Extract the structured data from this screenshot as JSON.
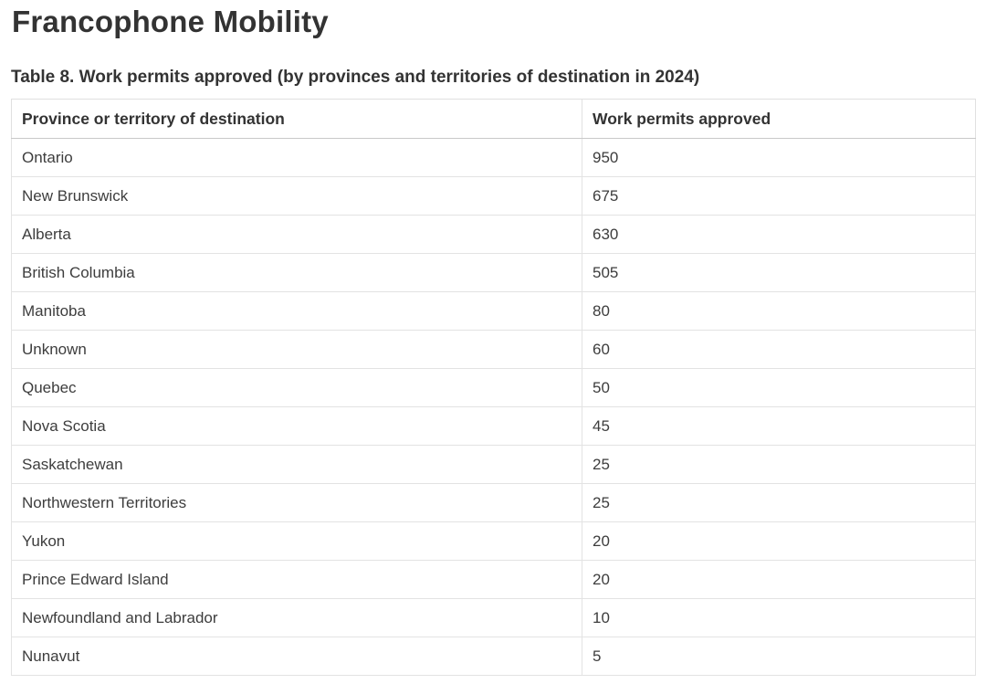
{
  "page": {
    "title": "Francophone Mobility",
    "table_caption": "Table 8. Work permits approved (by provinces and territories of destination in 2024)"
  },
  "colors": {
    "text_dark": "#333333",
    "text_body": "#3d3d3d",
    "border_light": "#e3e3e3",
    "border_header": "#c9c9c9",
    "background": "#ffffff"
  },
  "table": {
    "columns": [
      "Province or territory of destination",
      "Work permits approved"
    ],
    "rows": [
      {
        "province": "Ontario",
        "permits": "950"
      },
      {
        "province": "New Brunswick",
        "permits": "675"
      },
      {
        "province": "Alberta",
        "permits": "630"
      },
      {
        "province": "British Columbia",
        "permits": "505"
      },
      {
        "province": "Manitoba",
        "permits": "80"
      },
      {
        "province": "Unknown",
        "permits": "60"
      },
      {
        "province": "Quebec",
        "permits": "50"
      },
      {
        "province": "Nova Scotia",
        "permits": "45"
      },
      {
        "province": "Saskatchewan",
        "permits": "25"
      },
      {
        "province": "Northwestern Territories",
        "permits": "25"
      },
      {
        "province": "Yukon",
        "permits": "20"
      },
      {
        "province": "Prince Edward Island",
        "permits": "20"
      },
      {
        "province": "Newfoundland and Labrador",
        "permits": "10"
      },
      {
        "province": "Nunavut",
        "permits": "5"
      }
    ]
  }
}
